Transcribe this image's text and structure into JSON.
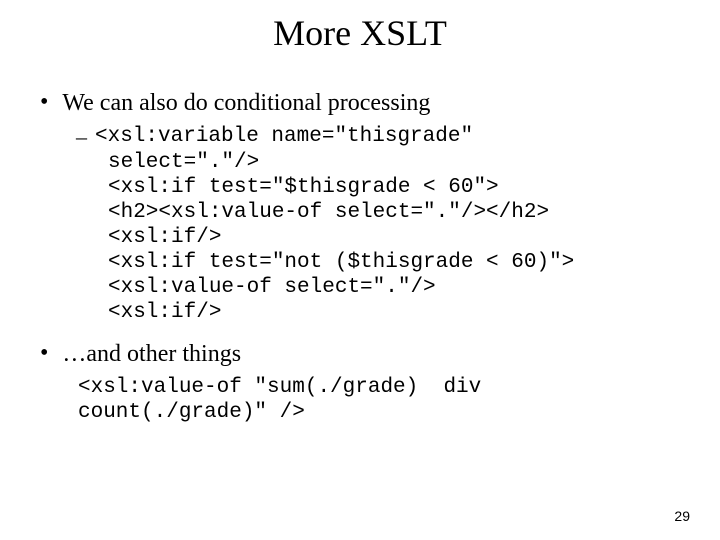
{
  "title": "More XSLT",
  "bullet1": "We can also do conditional processing",
  "code1_l1": "<xsl:variable name=\"thisgrade\"",
  "code1_l2": "select=\".\"/>",
  "code1_l3": "<xsl:if test=\"$thisgrade < 60\">",
  "code1_l4": "<h2><xsl:value-of select=\".\"/></h2>",
  "code1_l5": "<xsl:if/>",
  "code1_l6": "<xsl:if test=\"not ($thisgrade < 60)\">",
  "code1_l7": "<xsl:value-of select=\".\"/>",
  "code1_l8": "<xsl:if/>",
  "bullet2": "…and other things",
  "code2_l1": "<xsl:value-of \"sum(./grade)  div",
  "code2_l2": "count(./grade)\" />",
  "page_number": "29",
  "colors": {
    "bg": "#ffffff",
    "text": "#000000"
  },
  "fonts": {
    "serif": "Times New Roman",
    "mono": "Courier New"
  }
}
